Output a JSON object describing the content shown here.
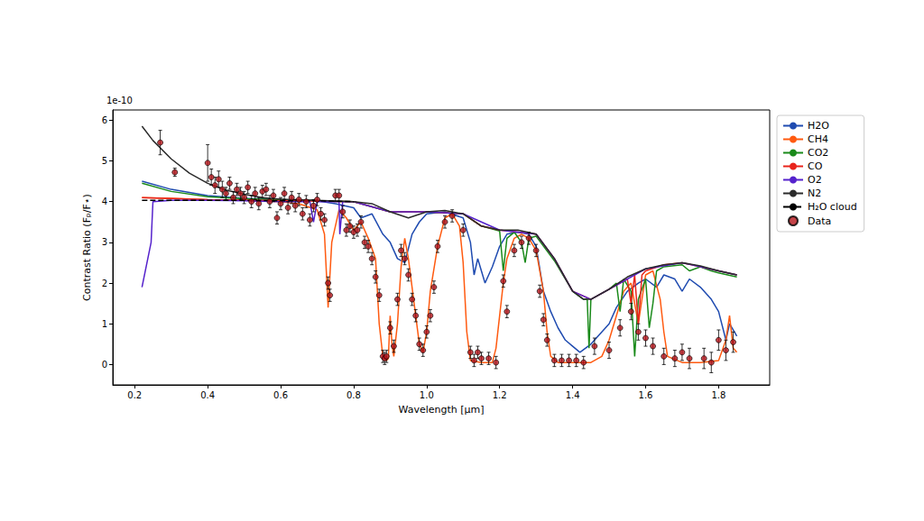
{
  "chart_data": {
    "type": "line",
    "x_label": "Wavelength [μm]",
    "y_label": "Contrast Ratio (Fₚ/F⋆)",
    "y_scale_label": "1e-10",
    "xlim": [
      0.14,
      1.94
    ],
    "xticks": [
      0.2,
      0.4,
      0.6,
      0.8,
      {
        "value": 1,
        "label": "1.0"
      },
      1.2,
      1.4,
      1.6,
      1.8
    ],
    "ylim": [
      -0.5,
      6.25
    ],
    "yticks": [
      0,
      1,
      2,
      3,
      4,
      5,
      6
    ],
    "grid": false,
    "legend": "outside right",
    "series": [
      {
        "name": "H2O",
        "type": "line",
        "color": "#1f4bb0",
        "line_style": "solid",
        "x": [
          0.22,
          0.3,
          0.4,
          0.5,
          0.6,
          0.7,
          0.75,
          0.8,
          0.82,
          0.85,
          0.88,
          0.9,
          0.92,
          0.94,
          0.96,
          0.98,
          1.0,
          1.05,
          1.1,
          1.12,
          1.13,
          1.14,
          1.16,
          1.18,
          1.2,
          1.22,
          1.25,
          1.28,
          1.3,
          1.32,
          1.34,
          1.36,
          1.38,
          1.4,
          1.42,
          1.45,
          1.48,
          1.5,
          1.52,
          1.55,
          1.58,
          1.6,
          1.63,
          1.65,
          1.68,
          1.7,
          1.72,
          1.75,
          1.78,
          1.8,
          1.82,
          1.83,
          1.85
        ],
        "values": [
          4.5,
          4.3,
          4.15,
          4.08,
          4.05,
          4.02,
          3.95,
          3.85,
          3.6,
          3.7,
          3.2,
          3.0,
          2.6,
          2.5,
          3.2,
          3.5,
          3.7,
          3.75,
          3.6,
          3.0,
          2.2,
          2.6,
          2.0,
          2.4,
          2.9,
          3.2,
          3.25,
          3.2,
          2.9,
          1.8,
          1.3,
          0.9,
          0.6,
          0.45,
          0.3,
          0.5,
          0.8,
          1.0,
          1.4,
          1.8,
          2.0,
          2.1,
          1.9,
          2.2,
          2.1,
          1.8,
          2.1,
          1.9,
          1.6,
          1.3,
          0.6,
          1.0,
          0.7
        ]
      },
      {
        "name": "CH4",
        "type": "line",
        "color": "#ff5a10",
        "line_style": "solid",
        "x": [
          0.22,
          0.3,
          0.4,
          0.5,
          0.6,
          0.65,
          0.7,
          0.72,
          0.73,
          0.74,
          0.76,
          0.78,
          0.8,
          0.82,
          0.84,
          0.86,
          0.87,
          0.88,
          0.89,
          0.895,
          0.9,
          0.905,
          0.91,
          0.92,
          0.93,
          0.94,
          0.95,
          0.97,
          0.98,
          0.99,
          1.0,
          1.01,
          1.03,
          1.05,
          1.07,
          1.09,
          1.1,
          1.11,
          1.12,
          1.15,
          1.18,
          1.19,
          1.2,
          1.21,
          1.22,
          1.24,
          1.26,
          1.28,
          1.3,
          1.32,
          1.33,
          1.34,
          1.36,
          1.4,
          1.45,
          1.48,
          1.5,
          1.52,
          1.54,
          1.56,
          1.58,
          1.6,
          1.62,
          1.64,
          1.65,
          1.66,
          1.7,
          1.75,
          1.8,
          1.82,
          1.83,
          1.84,
          1.85
        ],
        "values": [
          4.1,
          4.08,
          4.05,
          4.03,
          4.0,
          3.95,
          3.8,
          3.2,
          1.4,
          3.0,
          3.8,
          3.6,
          3.3,
          3.5,
          3.1,
          2.6,
          1.0,
          0.2,
          0.1,
          0.15,
          1.2,
          0.5,
          0.2,
          1.0,
          2.4,
          3.1,
          2.6,
          1.2,
          0.5,
          0.3,
          0.8,
          1.8,
          2.9,
          3.6,
          3.7,
          3.4,
          2.5,
          0.8,
          0.1,
          0.05,
          0.05,
          0.4,
          1.2,
          2.0,
          2.6,
          3.1,
          3.2,
          3.1,
          2.8,
          1.8,
          0.8,
          0.2,
          0.05,
          0.05,
          0.05,
          0.2,
          0.6,
          1.2,
          1.8,
          2.0,
          1.0,
          2.2,
          2.3,
          1.6,
          0.8,
          0.2,
          0.05,
          0.05,
          0.1,
          0.6,
          1.2,
          0.4,
          0.3
        ]
      },
      {
        "name": "CO2",
        "type": "line",
        "color": "#1a8a1a",
        "line_style": "solid",
        "x": [
          0.22,
          0.3,
          0.4,
          0.5,
          0.6,
          0.8,
          0.9,
          1.0,
          1.1,
          1.15,
          1.2,
          1.21,
          1.22,
          1.24,
          1.26,
          1.27,
          1.28,
          1.3,
          1.35,
          1.4,
          1.43,
          1.44,
          1.445,
          1.45,
          1.5,
          1.52,
          1.53,
          1.54,
          1.56,
          1.57,
          1.58,
          1.6,
          1.61,
          1.62,
          1.63,
          1.65,
          1.7,
          1.72,
          1.75,
          1.78,
          1.8,
          1.85
        ],
        "values": [
          4.45,
          4.25,
          4.12,
          4.07,
          4.05,
          4.0,
          3.75,
          3.75,
          3.7,
          3.4,
          3.28,
          2.3,
          3.1,
          3.25,
          3.0,
          2.5,
          3.1,
          3.15,
          2.55,
          1.8,
          1.6,
          1.6,
          0.4,
          1.6,
          1.85,
          2.0,
          1.3,
          2.1,
          1.8,
          0.2,
          1.6,
          2.1,
          0.9,
          1.5,
          2.3,
          2.4,
          2.45,
          2.3,
          2.4,
          2.3,
          2.25,
          2.15
        ]
      },
      {
        "name": "CO",
        "type": "line",
        "color": "#e8241c",
        "line_style": "solid",
        "x": [
          0.22,
          0.4,
          0.8,
          0.9,
          1.0,
          1.1,
          1.15,
          1.2,
          1.3,
          1.35,
          1.4,
          1.45,
          1.5,
          1.55,
          1.56,
          1.57,
          1.58,
          1.59,
          1.6,
          1.65,
          1.7,
          1.8,
          1.85
        ],
        "values": [
          4.1,
          4.05,
          4.0,
          3.75,
          3.75,
          3.7,
          3.4,
          3.3,
          3.2,
          2.6,
          1.8,
          1.6,
          1.85,
          2.1,
          1.5,
          2.2,
          1.0,
          2.2,
          2.3,
          2.45,
          2.5,
          2.3,
          2.2
        ]
      },
      {
        "name": "O2",
        "type": "line",
        "color": "#5522cc",
        "line_style": "solid",
        "x": [
          0.22,
          0.245,
          0.25,
          0.3,
          0.4,
          0.5,
          0.6,
          0.68,
          0.69,
          0.7,
          0.76,
          0.762,
          0.77,
          0.8,
          0.9,
          1.0,
          1.1,
          1.2,
          1.3,
          1.35,
          1.4,
          1.45,
          1.5,
          1.6,
          1.7,
          1.8,
          1.85
        ],
        "values": [
          1.9,
          3.0,
          4.0,
          4.03,
          4.03,
          4.02,
          4.0,
          4.0,
          3.5,
          4.0,
          4.0,
          3.2,
          4.0,
          4.0,
          3.75,
          3.75,
          3.7,
          3.3,
          3.2,
          2.6,
          1.8,
          1.6,
          1.85,
          2.35,
          2.5,
          2.3,
          2.2
        ]
      },
      {
        "name": "N2",
        "type": "line",
        "color": "#2b2b2b",
        "line_style": "solid",
        "x": [
          0.22,
          0.25,
          0.3,
          0.35,
          0.4,
          0.45,
          0.5,
          0.55,
          0.6,
          0.7,
          0.8,
          0.85,
          0.9,
          0.95,
          1.0,
          1.05,
          1.1,
          1.15,
          1.2,
          1.25,
          1.3,
          1.35,
          1.4,
          1.43,
          1.45,
          1.5,
          1.55,
          1.6,
          1.65,
          1.7,
          1.75,
          1.8,
          1.85
        ],
        "values": [
          5.85,
          5.5,
          5.05,
          4.7,
          4.45,
          4.28,
          4.18,
          4.1,
          4.06,
          4.03,
          4.0,
          3.95,
          3.75,
          3.6,
          3.75,
          3.78,
          3.7,
          3.4,
          3.3,
          3.3,
          3.2,
          2.6,
          1.8,
          1.6,
          1.6,
          1.85,
          2.15,
          2.35,
          2.45,
          2.5,
          2.42,
          2.3,
          2.2
        ]
      },
      {
        "name": "H₂O cloud",
        "type": "line",
        "color": "#000000",
        "line_style": "dashed",
        "x": [
          0.22,
          0.3,
          0.4,
          0.5,
          0.6,
          0.7,
          0.8
        ],
        "values": [
          4.03,
          4.03,
          4.03,
          4.03,
          4.02,
          4.02,
          4.0
        ]
      },
      {
        "name": "Data",
        "type": "scatter",
        "color": "#b5141a",
        "marker": "circle",
        "x": [
          0.27,
          0.31,
          0.4,
          0.41,
          0.42,
          0.43,
          0.44,
          0.45,
          0.46,
          0.47,
          0.48,
          0.49,
          0.5,
          0.51,
          0.52,
          0.53,
          0.54,
          0.55,
          0.56,
          0.57,
          0.58,
          0.59,
          0.6,
          0.61,
          0.62,
          0.63,
          0.64,
          0.65,
          0.66,
          0.67,
          0.68,
          0.69,
          0.7,
          0.71,
          0.72,
          0.73,
          0.735,
          0.75,
          0.76,
          0.77,
          0.78,
          0.79,
          0.8,
          0.81,
          0.82,
          0.83,
          0.84,
          0.85,
          0.86,
          0.87,
          0.88,
          0.885,
          0.89,
          0.9,
          0.91,
          0.92,
          0.93,
          0.94,
          0.95,
          0.96,
          0.97,
          0.98,
          0.99,
          1.0,
          1.01,
          1.02,
          1.03,
          1.05,
          1.07,
          1.1,
          1.12,
          1.13,
          1.14,
          1.15,
          1.17,
          1.19,
          1.21,
          1.22,
          1.24,
          1.26,
          1.28,
          1.3,
          1.31,
          1.32,
          1.33,
          1.35,
          1.37,
          1.39,
          1.41,
          1.43,
          1.46,
          1.5,
          1.53,
          1.56,
          1.58,
          1.6,
          1.62,
          1.65,
          1.68,
          1.7,
          1.72,
          1.76,
          1.78,
          1.8,
          1.82,
          1.84
        ],
        "values": [
          5.45,
          4.72,
          4.95,
          4.6,
          4.4,
          4.55,
          4.3,
          4.2,
          4.45,
          4.1,
          4.3,
          4.2,
          4.1,
          4.35,
          4.0,
          4.2,
          3.95,
          4.25,
          4.3,
          4.0,
          4.15,
          3.6,
          3.95,
          4.2,
          3.85,
          4.1,
          3.9,
          4.05,
          3.7,
          4.0,
          3.55,
          3.9,
          4.05,
          3.7,
          3.55,
          2.0,
          1.7,
          4.15,
          4.15,
          3.75,
          3.3,
          3.4,
          3.25,
          3.3,
          3.5,
          3.0,
          2.9,
          2.6,
          2.15,
          1.7,
          0.2,
          0.15,
          0.2,
          0.9,
          0.45,
          1.6,
          2.8,
          2.6,
          2.2,
          1.6,
          1.2,
          0.5,
          0.35,
          0.8,
          1.2,
          1.9,
          2.9,
          3.5,
          3.65,
          3.3,
          0.3,
          0.1,
          0.3,
          0.15,
          0.15,
          0.05,
          2.05,
          1.3,
          2.8,
          3.0,
          3.1,
          2.8,
          1.8,
          1.1,
          0.6,
          0.1,
          0.1,
          0.1,
          0.1,
          0.05,
          0.45,
          0.35,
          0.9,
          1.3,
          0.8,
          0.65,
          0.45,
          0.2,
          0.15,
          0.3,
          0.15,
          0.15,
          0.05,
          0.6,
          0.35,
          0.55
        ],
        "errors": [
          0.3,
          0.1,
          0.45,
          0.2,
          0.2,
          0.2,
          0.2,
          0.15,
          0.15,
          0.15,
          0.15,
          0.15,
          0.15,
          0.15,
          0.15,
          0.15,
          0.15,
          0.15,
          0.15,
          0.15,
          0.15,
          0.15,
          0.15,
          0.15,
          0.15,
          0.15,
          0.15,
          0.15,
          0.15,
          0.15,
          0.15,
          0.15,
          0.15,
          0.15,
          0.15,
          0.15,
          0.15,
          0.15,
          0.15,
          0.15,
          0.15,
          0.15,
          0.15,
          0.15,
          0.15,
          0.15,
          0.15,
          0.15,
          0.15,
          0.15,
          0.15,
          0.15,
          0.15,
          0.15,
          0.15,
          0.15,
          0.15,
          0.15,
          0.15,
          0.15,
          0.15,
          0.15,
          0.15,
          0.15,
          0.15,
          0.15,
          0.15,
          0.15,
          0.15,
          0.15,
          0.15,
          0.15,
          0.15,
          0.15,
          0.15,
          0.15,
          0.15,
          0.15,
          0.15,
          0.15,
          0.15,
          0.15,
          0.15,
          0.15,
          0.15,
          0.15,
          0.15,
          0.15,
          0.15,
          0.15,
          0.2,
          0.2,
          0.2,
          0.2,
          0.2,
          0.2,
          0.2,
          0.2,
          0.2,
          0.2,
          0.25,
          0.25,
          0.25,
          0.25,
          0.25,
          0.25
        ]
      }
    ]
  }
}
